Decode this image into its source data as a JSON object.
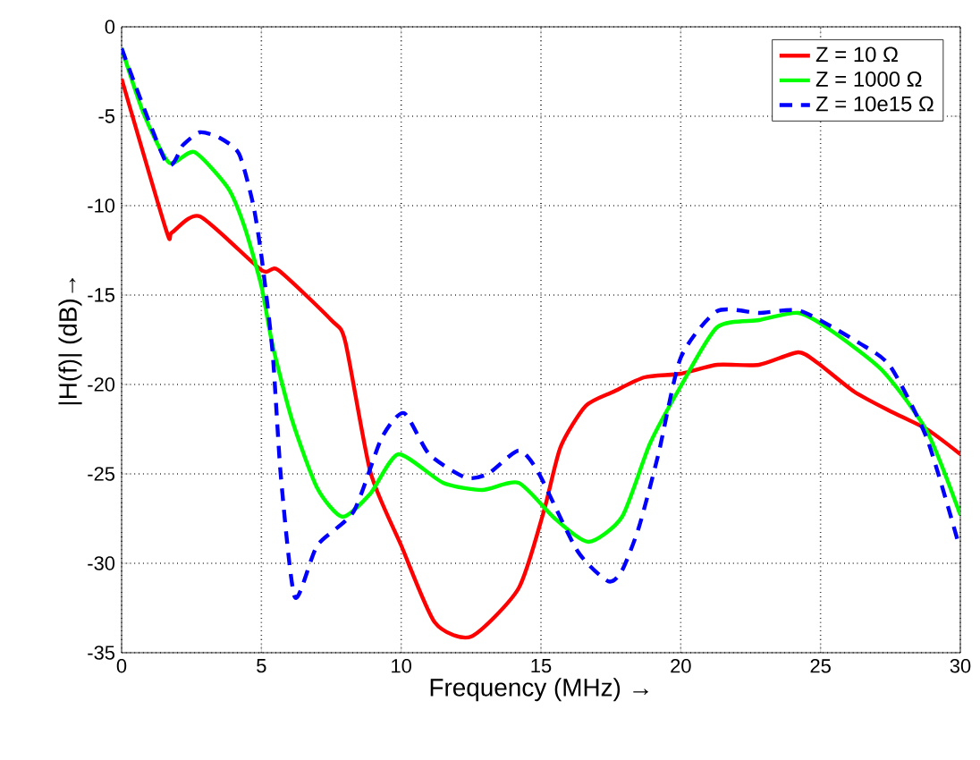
{
  "chart_data": {
    "type": "line",
    "xlabel": "Frequency (MHz) →",
    "ylabel": "|H(f)| (dB)→",
    "xlim": [
      0,
      30
    ],
    "ylim": [
      -35,
      0
    ],
    "xticks": [
      0,
      5,
      10,
      15,
      20,
      25,
      30
    ],
    "yticks": [
      -35,
      -30,
      -25,
      -20,
      -15,
      -10,
      -5,
      0
    ],
    "grid": true,
    "legend": "top right",
    "series": [
      {
        "name": "Z = 10 Ω",
        "color": "#ff0000",
        "line_style": "solid",
        "x": [
          0,
          1.6,
          1.8,
          2.8,
          5,
          5.6,
          7.5,
          8,
          8.9,
          10,
          11.2,
          12.5,
          14.2,
          15.1,
          15.7,
          16.6,
          17.6,
          18.7,
          20,
          21.3,
          22.8,
          24.2,
          24.9,
          26.2,
          27.5,
          28.8,
          30
        ],
        "values": [
          -2.9,
          -11.4,
          -11.5,
          -10.6,
          -13.6,
          -13.6,
          -16.4,
          -17.6,
          -24.9,
          -29,
          -33.3,
          -34.1,
          -31.4,
          -27.1,
          -23.5,
          -21.2,
          -20.4,
          -19.6,
          -19.4,
          -18.9,
          -18.9,
          -18.2,
          -18.8,
          -20.4,
          -21.5,
          -22.5,
          -23.9
        ]
      },
      {
        "name": "Z = 1000 Ω",
        "color": "#00ff00",
        "line_style": "solid",
        "x": [
          0,
          0.8,
          1.7,
          2.6,
          3.8,
          4.4,
          5,
          5.4,
          6.1,
          7,
          7.9,
          8.9,
          9.9,
          11.5,
          12.9,
          14.2,
          15.5,
          16.7,
          17.9,
          18.9,
          20,
          21.3,
          22.8,
          24.2,
          25.3,
          27.2,
          28.8,
          30
        ],
        "values": [
          -1.2,
          -4.9,
          -7.6,
          -7,
          -9,
          -11.2,
          -14.5,
          -17.8,
          -22,
          -25.8,
          -27.4,
          -26.1,
          -23.9,
          -25.5,
          -25.9,
          -25.5,
          -27.5,
          -28.8,
          -27.4,
          -23.3,
          -20.1,
          -16.8,
          -16.4,
          -16,
          -16.9,
          -19.2,
          -22.6,
          -27.3
        ]
      },
      {
        "name": "Z = 10e15 Ω",
        "color": "#0000ff",
        "line_style": "dashed",
        "x": [
          0,
          1.6,
          2.2,
          2.8,
          3.5,
          4.2,
          4.7,
          5,
          5.4,
          5.7,
          6.2,
          7,
          8.3,
          9.3,
          10.1,
          11,
          12.3,
          13.1,
          14.2,
          14.9,
          16.3,
          17.4,
          17.9,
          18.5,
          19.2,
          20,
          21.3,
          22.8,
          24.3,
          26.4,
          27.5,
          28.8,
          29.9
        ],
        "values": [
          -1.2,
          -7.6,
          -6.6,
          -5.9,
          -6.2,
          -7.1,
          -9.9,
          -12.8,
          -18.2,
          -25.2,
          -31.9,
          -29,
          -27.1,
          -23,
          -21.6,
          -23.9,
          -25.2,
          -25,
          -23.7,
          -24.9,
          -29.3,
          -31,
          -30.4,
          -28,
          -23.9,
          -18.5,
          -15.9,
          -16,
          -15.9,
          -17.7,
          -19,
          -23,
          -28.7
        ]
      }
    ]
  }
}
